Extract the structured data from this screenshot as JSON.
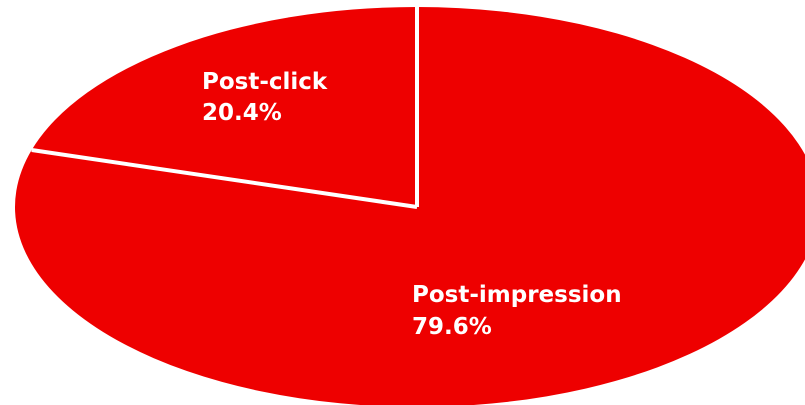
{
  "chart_data": {
    "type": "pie",
    "slices": [
      {
        "label": "Post-click",
        "value": 20.4,
        "value_text": "20.4%"
      },
      {
        "label": "Post-impression",
        "value": 79.6,
        "value_text": "79.6%"
      }
    ],
    "colors": {
      "slice_fill": "#ee0000",
      "separator": "#ffffff",
      "label_text": "#ffffff",
      "background": "#ffffff"
    }
  }
}
